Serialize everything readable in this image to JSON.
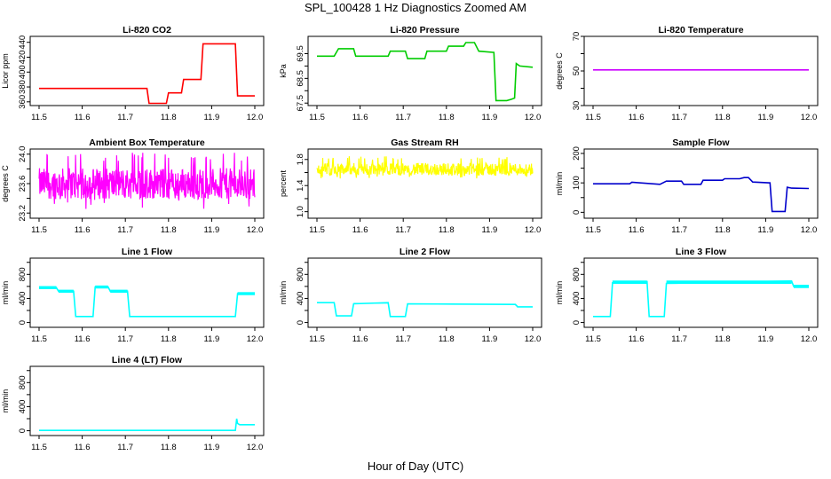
{
  "title": "SPL_100428  1 Hz Diagnostics Zoomed AM",
  "xlabel": "Hour of Day (UTC)",
  "chart_data": [
    {
      "type": "line",
      "title": "Li-820 CO2",
      "ylabel": "Licor ppm",
      "color": "#ff0000",
      "xlim": [
        11.5,
        12.0
      ],
      "ylim": [
        355,
        448
      ],
      "yticks": [
        "360",
        "380",
        "400",
        "420",
        "440"
      ],
      "ytick_values": [
        360,
        380,
        400,
        420,
        440
      ],
      "xticks": [
        "11.5",
        "11.6",
        "11.7",
        "11.8",
        "11.9",
        "12.0"
      ],
      "x": [
        11.5,
        11.75,
        11.755,
        11.795,
        11.8,
        11.83,
        11.835,
        11.875,
        11.88,
        11.955,
        11.96,
        12.0
      ],
      "y": [
        378,
        378,
        358,
        358,
        372,
        372,
        390,
        390,
        438,
        438,
        368,
        368
      ]
    },
    {
      "type": "line",
      "title": "Li-820 Pressure",
      "ylabel": "kPa",
      "color": "#00cc00",
      "xlim": [
        11.5,
        12.0
      ],
      "ylim": [
        67.4,
        70.2
      ],
      "yticks": [
        "67.5",
        "68.5",
        "69.5"
      ],
      "extra_yticks": [
        "68.0",
        "69.0"
      ],
      "ytick_values": [
        67.5,
        68.0,
        68.5,
        69.0,
        69.5
      ],
      "xticks": [
        "11.5",
        "11.6",
        "11.7",
        "11.8",
        "11.9",
        "12.0"
      ],
      "x": [
        11.5,
        11.54,
        11.55,
        11.585,
        11.59,
        11.665,
        11.67,
        11.705,
        11.71,
        11.75,
        11.755,
        11.8,
        11.805,
        11.84,
        11.845,
        11.865,
        11.875,
        11.91,
        11.915,
        11.94,
        11.95,
        11.958,
        11.962,
        11.97,
        12.0
      ],
      "y": [
        69.4,
        69.4,
        69.7,
        69.7,
        69.4,
        69.4,
        69.6,
        69.6,
        69.3,
        69.3,
        69.6,
        69.6,
        69.8,
        69.8,
        69.95,
        69.95,
        69.6,
        69.55,
        67.6,
        67.6,
        67.65,
        67.7,
        69.1,
        69.0,
        68.95
      ]
    },
    {
      "type": "line",
      "title": "Li-820 Temperature",
      "ylabel": "degrees C",
      "color": "#cc00ff",
      "xlim": [
        11.5,
        12.0
      ],
      "ylim": [
        30,
        70
      ],
      "yticks": [
        "30",
        "50",
        "70"
      ],
      "ytick_values": [
        30,
        40,
        50,
        60,
        70
      ],
      "xticks": [
        "11.5",
        "11.6",
        "11.7",
        "11.8",
        "11.9",
        "12.0"
      ],
      "x": [
        11.5,
        12.0
      ],
      "y": [
        50.6,
        50.6
      ]
    },
    {
      "type": "line",
      "title": "Ambient Box Temperature",
      "ylabel": "degrees C",
      "color": "#ff00ff",
      "xlim": [
        11.5,
        12.0
      ],
      "ylim": [
        23.13,
        24.07
      ],
      "yticks": [
        "23.2",
        "23.6",
        "24.0"
      ],
      "extra_yticks": [
        "23.4",
        "23.8"
      ],
      "ytick_values": [
        23.2,
        23.4,
        23.6,
        23.8,
        24.0
      ],
      "xticks": [
        "11.5",
        "11.6",
        "11.7",
        "11.8",
        "11.9",
        "12.0"
      ],
      "x": [
        11.5,
        12.0
      ],
      "y": [
        23.6,
        23.6
      ],
      "noise_band": [
        23.25,
        24.02
      ]
    },
    {
      "type": "line",
      "title": "Gas Stream RH",
      "ylabel": "percent",
      "color": "#ffff00",
      "xlim": [
        11.5,
        12.0
      ],
      "ylim": [
        0.9,
        1.96
      ],
      "yticks": [
        "1.0",
        "1.4",
        "1.8"
      ],
      "extra_yticks": [
        "1.2",
        "1.6"
      ],
      "ytick_values": [
        1.0,
        1.2,
        1.4,
        1.6,
        1.8
      ],
      "xticks": [
        "11.5",
        "11.6",
        "11.7",
        "11.8",
        "11.9",
        "12.0"
      ],
      "x": [
        11.5,
        12.0
      ],
      "y": [
        1.65,
        1.65
      ],
      "noise_band": [
        1.5,
        1.85
      ]
    },
    {
      "type": "line",
      "title": "Sample Flow",
      "ylabel": "ml/min",
      "color": "#0000cc",
      "xlim": [
        11.5,
        12.0
      ],
      "ylim": [
        -20,
        215
      ],
      "yticks": [
        "0",
        "100",
        "200"
      ],
      "ytick_values": [
        0,
        50,
        100,
        150,
        200
      ],
      "xticks": [
        "11.5",
        "11.6",
        "11.7",
        "11.8",
        "11.9",
        "12.0"
      ],
      "x": [
        11.5,
        11.585,
        11.59,
        11.655,
        11.67,
        11.705,
        11.71,
        11.75,
        11.755,
        11.8,
        11.805,
        11.84,
        11.85,
        11.86,
        11.87,
        11.91,
        11.915,
        11.945,
        11.95,
        11.96,
        12.0
      ],
      "y": [
        97,
        97,
        102,
        95,
        106,
        106,
        95,
        95,
        109,
        109,
        114,
        114,
        118,
        118,
        103,
        100,
        3,
        3,
        85,
        82,
        81
      ]
    },
    {
      "type": "line",
      "title": "Line 1 Flow",
      "ylabel": "ml/min",
      "color": "#00ffff",
      "xlim": [
        11.5,
        12.0
      ],
      "ylim": [
        -80,
        1070
      ],
      "yticks": [
        "0",
        "400",
        "800"
      ],
      "extra_yticks": [
        "200",
        "600",
        "1000"
      ],
      "ytick_values": [
        0,
        200,
        400,
        600,
        800,
        1000
      ],
      "xticks": [
        "11.5",
        "11.6",
        "11.7",
        "11.8",
        "11.9",
        "12.0"
      ],
      "x": [
        11.5,
        11.54,
        11.545,
        11.58,
        11.585,
        11.625,
        11.63,
        11.66,
        11.665,
        11.705,
        11.71,
        11.955,
        11.96,
        12.0
      ],
      "y": [
        580,
        580,
        520,
        520,
        100,
        100,
        590,
        590,
        520,
        520,
        100,
        100,
        480,
        480
      ],
      "noise_band_amp": 50
    },
    {
      "type": "line",
      "title": "Line 2 Flow",
      "ylabel": "ml/min",
      "color": "#00ffff",
      "xlim": [
        11.5,
        12.0
      ],
      "ylim": [
        -80,
        1070
      ],
      "yticks": [
        "0",
        "400",
        "800"
      ],
      "extra_yticks": [
        "200",
        "600",
        "1000"
      ],
      "ytick_values": [
        0,
        200,
        400,
        600,
        800,
        1000
      ],
      "xticks": [
        "11.5",
        "11.6",
        "11.7",
        "11.8",
        "11.9",
        "12.0"
      ],
      "x": [
        11.5,
        11.54,
        11.545,
        11.58,
        11.585,
        11.665,
        11.67,
        11.705,
        11.71,
        11.96,
        11.965,
        12.0
      ],
      "y": [
        330,
        330,
        110,
        110,
        310,
        330,
        100,
        100,
        310,
        300,
        260,
        260
      ],
      "noise_band_amp": 12
    },
    {
      "type": "line",
      "title": "Line 3 Flow",
      "ylabel": "ml/min",
      "color": "#00ffff",
      "xlim": [
        11.5,
        12.0
      ],
      "ylim": [
        -80,
        1070
      ],
      "yticks": [
        "0",
        "400",
        "800"
      ],
      "extra_yticks": [
        "200",
        "600",
        "1000"
      ],
      "ytick_values": [
        0,
        200,
        400,
        600,
        800,
        1000
      ],
      "xticks": [
        "11.5",
        "11.6",
        "11.7",
        "11.8",
        "11.9",
        "12.0"
      ],
      "x": [
        11.5,
        11.54,
        11.545,
        11.625,
        11.63,
        11.665,
        11.67,
        11.96,
        11.965,
        12.0
      ],
      "y": [
        100,
        100,
        660,
        680,
        100,
        100,
        650,
        690,
        600,
        600
      ],
      "noise_band_amp": 55
    },
    {
      "type": "line",
      "title": "Line 4 (LT) Flow",
      "ylabel": "ml/min",
      "color": "#00ffff",
      "xlim": [
        11.5,
        12.0
      ],
      "ylim": [
        -80,
        1070
      ],
      "yticks": [
        "0",
        "400",
        "800"
      ],
      "extra_yticks": [
        "200",
        "600",
        "1000"
      ],
      "ytick_values": [
        0,
        200,
        400,
        600,
        800,
        1000
      ],
      "xticks": [
        "11.5",
        "11.6",
        "11.7",
        "11.8",
        "11.9",
        "12.0"
      ],
      "x": [
        11.5,
        11.955,
        11.958,
        11.96,
        11.965,
        12.0
      ],
      "y": [
        5,
        5,
        200,
        120,
        100,
        100
      ]
    }
  ]
}
